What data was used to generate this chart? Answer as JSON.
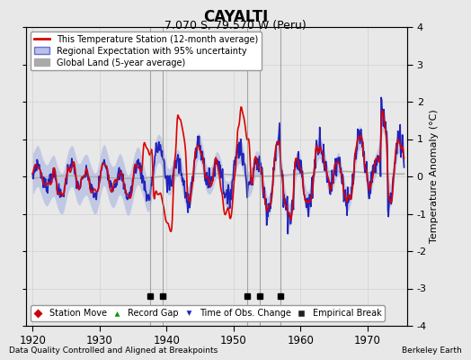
{
  "title": "CAYALTI",
  "subtitle": "7.070 S, 79.570 W (Peru)",
  "xlabel_left": "Data Quality Controlled and Aligned at Breakpoints",
  "xlabel_right": "Berkeley Earth",
  "ylabel": "Temperature Anomaly (°C)",
  "xlim": [
    1919,
    1976
  ],
  "ylim": [
    -4,
    4
  ],
  "yticks": [
    -4,
    -3,
    -2,
    -1,
    0,
    1,
    2,
    3,
    4
  ],
  "xticks": [
    1920,
    1930,
    1940,
    1950,
    1960,
    1970
  ],
  "background_color": "#e8e8e8",
  "plot_background": "#e8e8e8",
  "legend_label_station": "This Temperature Station (12-month average)",
  "legend_label_regional": "Regional Expectation with 95% uncertainty",
  "legend_label_global": "Global Land (5-year average)",
  "color_station": "#dd0000",
  "color_regional": "#2222bb",
  "color_band": "#8899dd",
  "color_global": "#aaaaaa",
  "color_break_line": "#aaaaaa",
  "empirical_breaks": [
    1937.5,
    1939.5,
    1952.0,
    1954.0,
    1957.0
  ],
  "marker_legend": [
    {
      "label": "Station Move",
      "marker": "D",
      "color": "#cc0000"
    },
    {
      "label": "Record Gap",
      "marker": "^",
      "color": "#009900"
    },
    {
      "label": "Time of Obs. Change",
      "marker": "v",
      "color": "#2222bb"
    },
    {
      "label": "Empirical Break",
      "marker": "s",
      "color": "#222222"
    }
  ]
}
